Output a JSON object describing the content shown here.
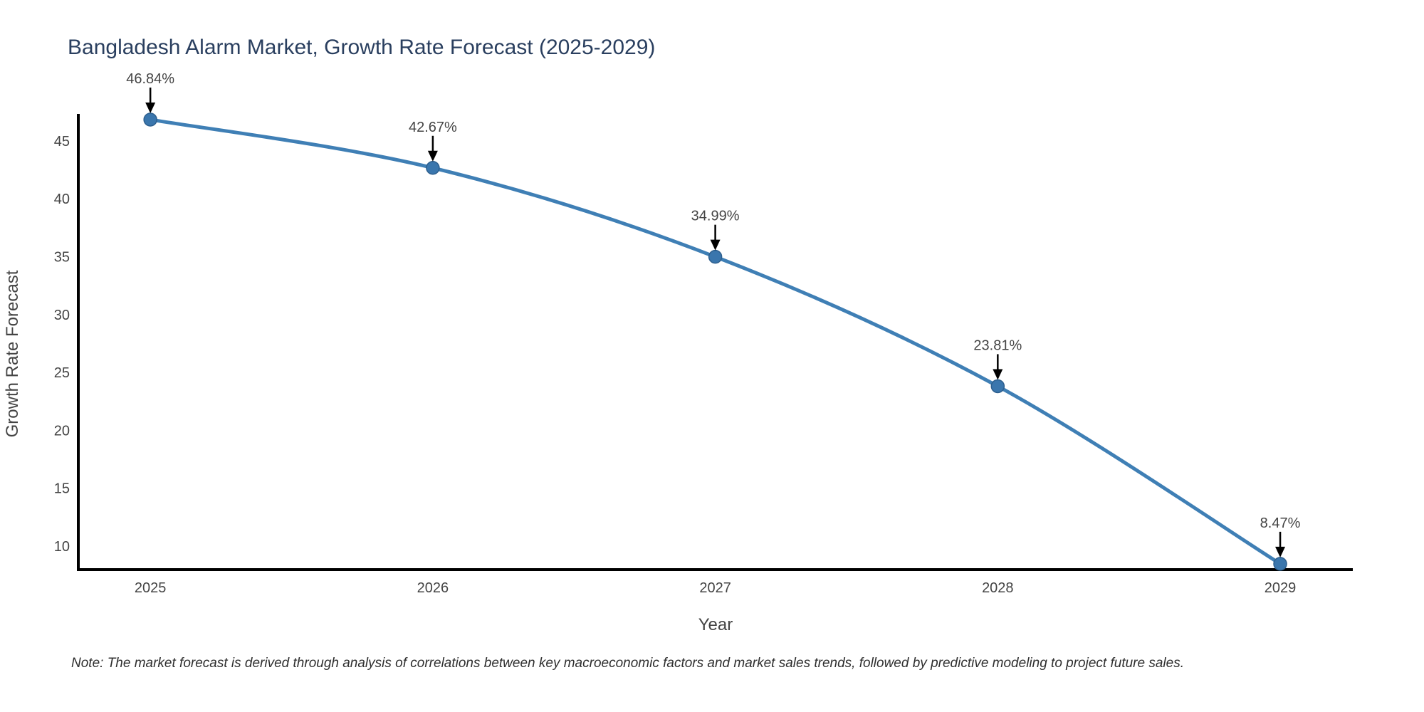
{
  "chart_data": {
    "type": "line",
    "line_shape": "spline",
    "title": "Bangladesh Alarm Market, Growth Rate Forecast (2025-2029)",
    "xlabel": "Year",
    "ylabel": "Growth Rate Forecast",
    "note": "Note: The market forecast is derived through analysis of correlations between key macroeconomic factors and market sales trends, followed by predictive modeling to project future sales.",
    "x": [
      2025,
      2026,
      2027,
      2028,
      2029
    ],
    "x_tick_labels": [
      "2025",
      "2026",
      "2027",
      "2028",
      "2029"
    ],
    "values": [
      46.84,
      42.67,
      34.99,
      23.81,
      8.47
    ],
    "point_labels": [
      "46.84%",
      "42.67%",
      "34.99%",
      "23.81%",
      "8.47%"
    ],
    "yticks": [
      10,
      15,
      20,
      25,
      30,
      35,
      40,
      45
    ],
    "xrange": [
      2024.745,
      2029.257
    ],
    "yrange": [
      7.97,
      47.33
    ],
    "grid": false,
    "legend_position": "none",
    "colors": {
      "line": "#3f7fb5",
      "marker_fill": "#3a76ad",
      "marker_edge": "#2d5f8e",
      "axis_line": "#000000",
      "title_text": "#2a3f5f",
      "tick_text": "#444444",
      "axis_title_text": "#444444",
      "annotation_text": "#444444",
      "arrow": "#000000",
      "note_text": "#2f2f2f",
      "background": "#ffffff"
    }
  }
}
